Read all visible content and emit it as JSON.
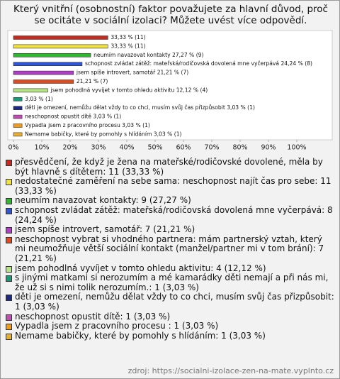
{
  "chart_data": {
    "type": "bar",
    "orientation": "horizontal",
    "title": "Který vnitřní (osobnostní) faktor považujete za hlavní důvod, proč se ocitáte v sociální izolaci? Můžete uvést více odpovědí.",
    "categories": [
      "přesvědčení, že když je žena na mateřské/rodičovské dovolené, měla by být hlavně s dítětem: 11 (33,33 %)",
      "nedostatečné zaměření na sebe sama: neschopnost najít čas pro sebe: 11 (33,33 %)",
      "neumím navazovat kontakty: 9 (27,27 %)",
      "schopnost zvládat zátěž: mateřská/rodičovská dovolená mne vyčerpává: 8 (24,24 %)",
      "jsem spíše introvert, samotář: 7 (21,21 %)",
      "neschopnost vybrat si vhodného partnera: mám partnerský vztah, který mi neumožňuje větší sociální kontakt (manžel/partner mi v tom brání): 7 (21,21 %)",
      "jsem pohodlná vyvíjet v tomto ohledu aktivitu: 4 (12,12 %)",
      "s jinými matkami si nerozumím a mé kamarádky děti nemají a při nás mi, že už si s nimi tolik nerozumím.: 1 (3,03 %)",
      "děti je omezení, nemůžu dělat vždy to co chci, musím svůj čas přizpůsobit: 1 (3,03 %)",
      "neschopnost opustit dítě: 1 (3,03 %)",
      "Vypadla jsem z pracovního procesu : 1 (3,03 %)",
      "Nemame babičky, které by pomohly s hlídáním: 1 (3,03 %)"
    ],
    "values": [
      33.33,
      33.33,
      27.27,
      24.24,
      21.21,
      21.21,
      12.12,
      3.03,
      3.03,
      3.03,
      3.03,
      3.03
    ],
    "value_labels": [
      "33,33 % (11)",
      "33,33 % (11)",
      "neumím navazovat kontakty 27,27 % (9)",
      "schopnost zvládat zátěž: mateřská/rodičovská dovolená mne vyčerpává 24,24 % (8)",
      "jsem spíše introvert, samotář 21,21 % (7)",
      "21,21 % (7)",
      "jsem pohodlná vyvíjet v tomto ohledu aktivitu 12,12 % (4)",
      "3,03 % (1)",
      "děti je omezení, nemůžu dělat vždy to co chci, musím svůj čas přizpůsobit 3,03 % (1)",
      "neschopnost opustit dítě 3,03 % (1)",
      "Vypadla jsem z pracovního procesu  3,03 % (1)",
      "Nemame babičky, které by pomohly s hlídáním 3,03 % (1)"
    ],
    "colors": [
      "#c8281e",
      "#f2e23c",
      "#2eb82e",
      "#2f55d4",
      "#b03cc8",
      "#e04a1c",
      "#b4e484",
      "#1a9a78",
      "#1c2a84",
      "#c04cb4",
      "#f09a18",
      "#e8b030"
    ],
    "xlim": [
      0,
      100
    ],
    "xticks": [
      {
        "value": 0,
        "label": "0%"
      },
      {
        "value": 10,
        "label": "10%"
      },
      {
        "value": 20,
        "label": "20%"
      },
      {
        "value": 30,
        "label": "30%"
      },
      {
        "value": 40,
        "label": "40%"
      },
      {
        "value": 50,
        "label": "50%"
      },
      {
        "value": 60,
        "label": "60%"
      },
      {
        "value": 70,
        "label": "70%"
      },
      {
        "value": 80,
        "label": "80%"
      },
      {
        "value": 90,
        "label": "90%"
      },
      {
        "value": 100,
        "label": "100%"
      }
    ],
    "source": "zdroj: https://socialni-izolace-zen-na-mate.vyplnto.cz"
  }
}
